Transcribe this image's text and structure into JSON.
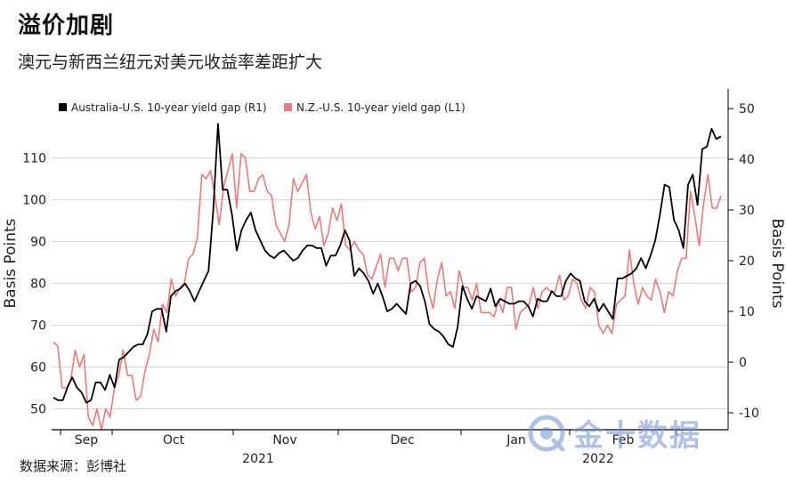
{
  "title": "溢价加剧",
  "subtitle": "澳元与新西兰纽元对美元收益率差距扩大",
  "source": "数据来源：彭博社",
  "watermark": "金十数据",
  "chart_data": {
    "type": "line",
    "left_axis": {
      "label": "Basis Points",
      "ticks": [
        50,
        60,
        70,
        80,
        90,
        100,
        110
      ],
      "range": [
        45,
        115
      ]
    },
    "right_axis": {
      "label": "Basis Points",
      "ticks": [
        -10,
        0,
        10,
        20,
        30,
        40,
        50
      ],
      "range": [
        -11,
        54
      ]
    },
    "x_labels": [
      "Sep",
      "Oct",
      "Nov",
      "Dec",
      "Jan",
      "Feb"
    ],
    "x_year_labels": [
      "2021",
      "2022"
    ],
    "legend": [
      {
        "name": "Australia-U.S. 10-year yield gap (R1)",
        "color": "#000000"
      },
      {
        "name": "N.Z.-U.S. 10-year yield gap (L1)",
        "color": "#f07878"
      }
    ],
    "series": [
      {
        "name": "Australia-U.S. 10-year yield gap (R1)",
        "axis": "right",
        "color": "#000000",
        "values": [
          -7,
          -7.5,
          -7.5,
          -5,
          -3,
          -5,
          -6,
          -8,
          -7.5,
          -4,
          -4,
          -5.5,
          -2.5,
          -5,
          0.5,
          1,
          2,
          3,
          3.5,
          3.5,
          5.5,
          10,
          10.5,
          10.5,
          6,
          13,
          14,
          14.5,
          15.5,
          14,
          12,
          14,
          16,
          18,
          30,
          47,
          34,
          34,
          29,
          22,
          26,
          28,
          29.5,
          26,
          24,
          22,
          21,
          20.5,
          21.5,
          22,
          21,
          20,
          20.5,
          22,
          23,
          23,
          22.5,
          22.5,
          19,
          21,
          21,
          23,
          26,
          24,
          17,
          18.5,
          17.5,
          16,
          13.5,
          15.5,
          13,
          10,
          10.5,
          11.5,
          10.5,
          9.5,
          15.5,
          16,
          15,
          12,
          7.5,
          6.5,
          6,
          5,
          3.5,
          3,
          7,
          15,
          12.5,
          10.5,
          13,
          12.5,
          12,
          14.5,
          11,
          12.5,
          12,
          11.5,
          11.5,
          12,
          12,
          11,
          9,
          12.5,
          12,
          12,
          14,
          13,
          13,
          16,
          17.5,
          16.5,
          16,
          12,
          11,
          12.5,
          10,
          11.5,
          10,
          8.5,
          16.5,
          16.5,
          17,
          17.5,
          18.5,
          20.5,
          18.5,
          21,
          24,
          29,
          35,
          34.5,
          28,
          26,
          22.5,
          35,
          37,
          31,
          42,
          42.5,
          46,
          44,
          44.5
        ]
      },
      {
        "name": "N.Z.-U.S. 10-year yield gap (L1)",
        "axis": "left",
        "color": "#f07878",
        "values": [
          66,
          65,
          55,
          55,
          57,
          64,
          60,
          63,
          48,
          46,
          50,
          45,
          50,
          48,
          55,
          58,
          64,
          58,
          58,
          52,
          53,
          59,
          63,
          69,
          66,
          75,
          73,
          81,
          77,
          79,
          80,
          86,
          87,
          91,
          106,
          105,
          107,
          101,
          94,
          103,
          107,
          111,
          98,
          111,
          110,
          102,
          102,
          105,
          106,
          102,
          101,
          94,
          92,
          90,
          94,
          105,
          102,
          104,
          106,
          97,
          93,
          96,
          89,
          92,
          98,
          95,
          99,
          89,
          88,
          90,
          88,
          87,
          82,
          81,
          84,
          87,
          79,
          86,
          86,
          83,
          86,
          86,
          78,
          79,
          85,
          86,
          78,
          74,
          81,
          85,
          77,
          78,
          74,
          83,
          79,
          79,
          76,
          80,
          73,
          73,
          73,
          72,
          76,
          73,
          79,
          79,
          69,
          73,
          74,
          75,
          79,
          74,
          78,
          79,
          78,
          78,
          82,
          76,
          77,
          81,
          80,
          76,
          74,
          79,
          78,
          70,
          68,
          70,
          68,
          75,
          76,
          77,
          88,
          80,
          75,
          79,
          77,
          76,
          81,
          78,
          73,
          78,
          77,
          83,
          86,
          86,
          102,
          96,
          89,
          99,
          106,
          98,
          98,
          101
        ]
      }
    ]
  }
}
